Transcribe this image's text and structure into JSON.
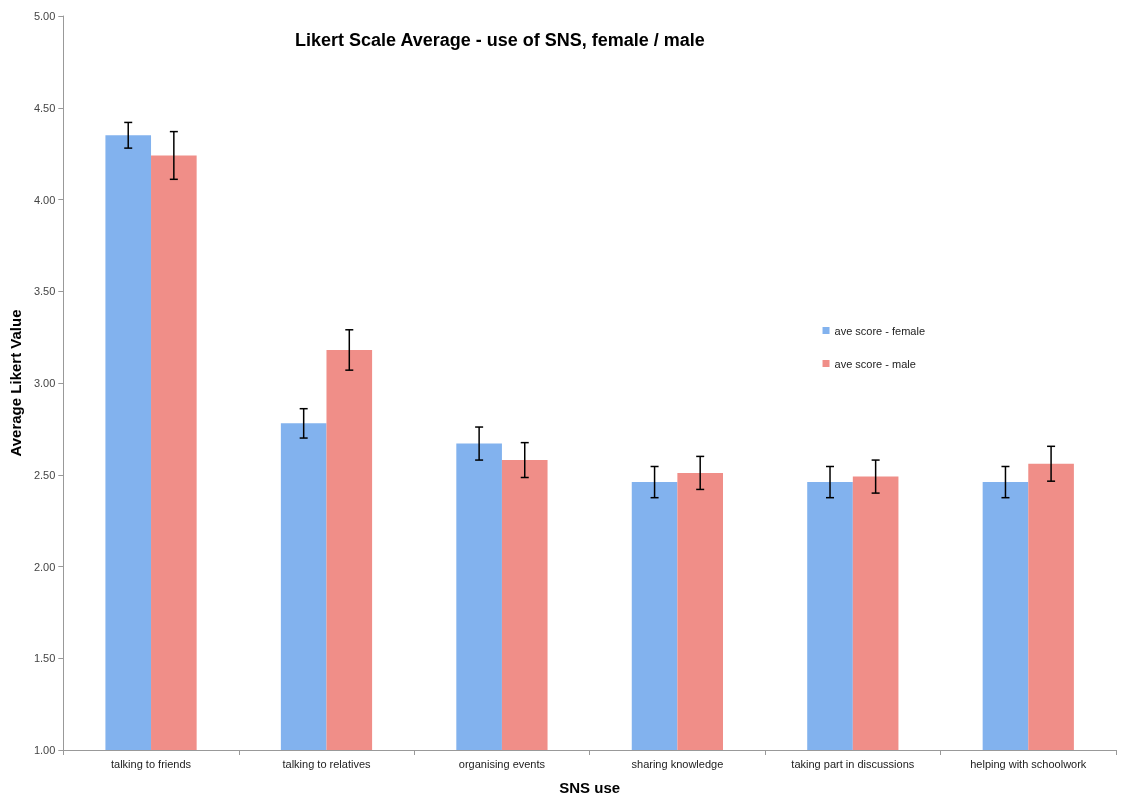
{
  "chart_data": {
    "type": "bar",
    "title": "Likert Scale Average - use of SNS, female / male",
    "xlabel": "SNS use",
    "ylabel": "Average Likert Value",
    "categories": [
      "talking to friends",
      "talking to relatives",
      "organising events",
      "sharing knowledge",
      "taking part in discussions",
      "helping with schoolwork"
    ],
    "series": [
      {
        "name": "ave score - female",
        "color": "#82b2ee",
        "values": [
          4.35,
          2.78,
          2.67,
          2.46,
          2.46,
          2.46
        ],
        "errors": [
          0.07,
          0.08,
          0.09,
          0.085,
          0.085,
          0.085
        ]
      },
      {
        "name": "ave score - male",
        "color": "#f08e88",
        "values": [
          4.24,
          3.18,
          2.58,
          2.51,
          2.49,
          2.56
        ],
        "errors": [
          0.13,
          0.11,
          0.095,
          0.09,
          0.09,
          0.095
        ]
      }
    ],
    "ylim": [
      1,
      5
    ],
    "yticks": [
      {
        "value": 1,
        "label": "1.00"
      },
      {
        "value": 1.5,
        "label": "1.50"
      },
      {
        "value": 2,
        "label": "2.00"
      },
      {
        "value": 2.5,
        "label": "2.50"
      },
      {
        "value": 3,
        "label": "3.00"
      },
      {
        "value": 3.5,
        "label": "3.50"
      },
      {
        "value": 4,
        "label": "4.00"
      },
      {
        "value": 4.5,
        "label": "4.50"
      },
      {
        "value": 5,
        "label": "5.00"
      }
    ],
    "grid": false,
    "legend": "right"
  }
}
